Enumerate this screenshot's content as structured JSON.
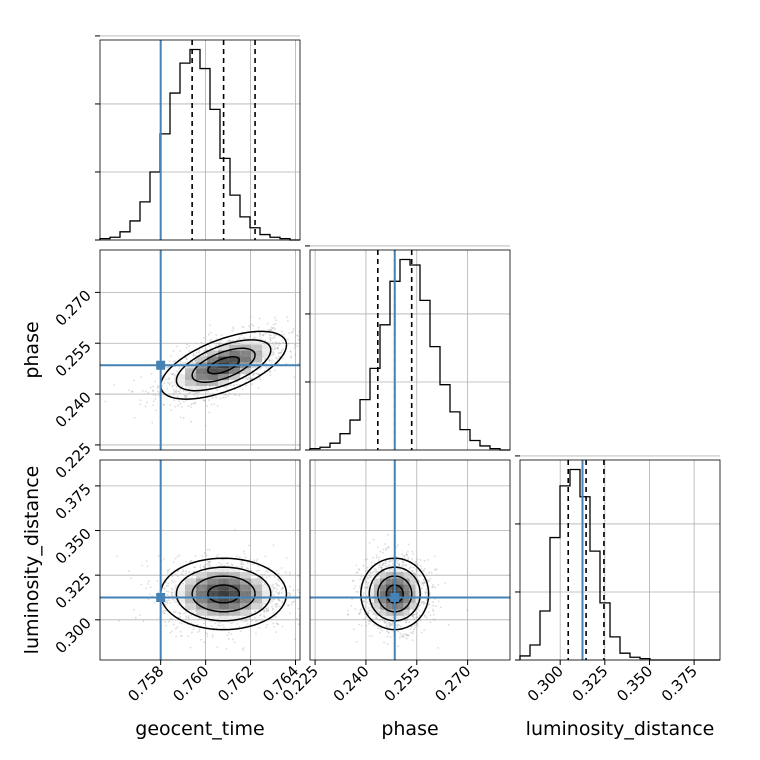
{
  "chart_data": {
    "type": "corner",
    "parameters": [
      {
        "name": "geocent_time",
        "label": "geocent_time",
        "range": [
          0.7553,
          0.7642
        ],
        "ticks": [
          0.758,
          0.76,
          0.762,
          0.764
        ],
        "tick_labels": [
          "0.758",
          "0.760",
          "0.762",
          "0.764"
        ],
        "truth": 0.758,
        "quantiles": [
          0.7594,
          0.7608,
          0.7622
        ]
      },
      {
        "name": "phase",
        "label": "phase",
        "range": [
          0.2235,
          0.2825
        ],
        "ticks": [
          0.225,
          0.24,
          0.255,
          0.27
        ],
        "tick_labels": [
          "0.225",
          "0.240",
          "0.255",
          "0.270"
        ],
        "truth": 0.2485,
        "quantiles": [
          0.2435,
          0.2485,
          0.2535
        ]
      },
      {
        "name": "luminosity_distance",
        "label": "luminosity_distance",
        "range": [
          0.2775,
          0.3895
        ],
        "ticks": [
          0.3,
          0.325,
          0.35,
          0.375
        ],
        "tick_labels": [
          "0.300",
          "0.325",
          "0.350",
          "0.375"
        ],
        "truth": 0.3125,
        "quantiles": [
          0.3045,
          0.3145,
          0.3245
        ]
      }
    ],
    "histograms": [
      {
        "param": "geocent_time",
        "bins": 20,
        "values": [
          1,
          2,
          6,
          14,
          28,
          50,
          78,
          108,
          130,
          140,
          126,
          96,
          60,
          33,
          17,
          9,
          4,
          2,
          1,
          0
        ]
      },
      {
        "param": "phase",
        "bins": 20,
        "values": [
          1,
          2,
          5,
          12,
          22,
          37,
          60,
          92,
          124,
          140,
          136,
          110,
          76,
          48,
          28,
          15,
          7,
          3,
          1,
          0
        ]
      },
      {
        "param": "luminosity_distance",
        "bins": 20,
        "values": [
          3,
          11,
          36,
          90,
          128,
          140,
          120,
          80,
          42,
          17,
          5,
          2,
          1,
          0,
          0,
          0,
          0,
          0,
          0,
          0
        ]
      }
    ],
    "pairs": [
      {
        "x": "geocent_time",
        "y": "phase",
        "correlation": 0.6,
        "contour_scales": [
          0.5,
          1.0,
          1.5,
          2.0
        ]
      },
      {
        "x": "geocent_time",
        "y": "luminosity_distance",
        "correlation": 0.0,
        "contour_scales": [
          0.5,
          1.0,
          1.5,
          2.0
        ]
      },
      {
        "x": "phase",
        "y": "luminosity_distance",
        "correlation": 0.0,
        "contour_scales": [
          0.5,
          1.0,
          1.5,
          2.0
        ]
      }
    ],
    "colors": {
      "truth": "#4682b4",
      "hist": "#000000",
      "grid": "#b0b0b0"
    },
    "grid": true
  }
}
